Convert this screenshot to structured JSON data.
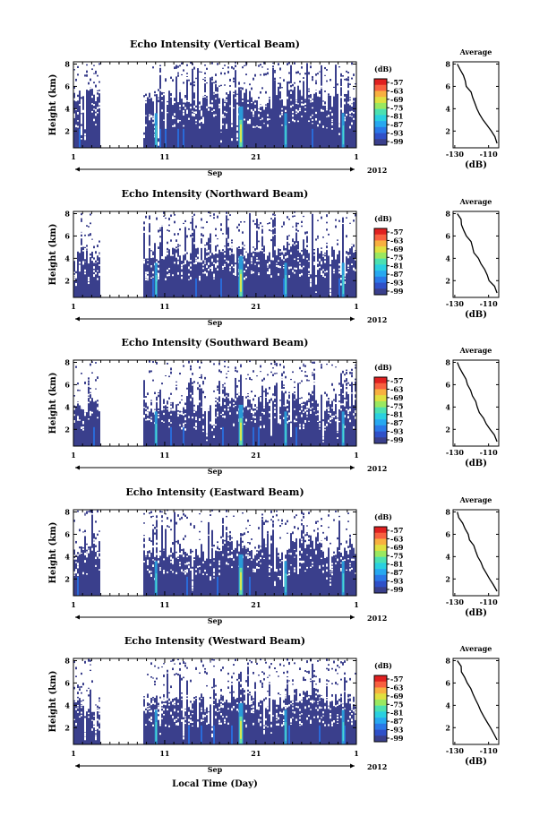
{
  "chart_data": {
    "type": "heatmap",
    "figure_xlabel": "Local Time (Day)",
    "x_ticks": [
      "1",
      "11",
      "21",
      "1"
    ],
    "month_label": "Sep",
    "year_label": "2012",
    "y_ticks": [
      "2",
      "4",
      "6",
      "8"
    ],
    "ylabel": "Height (km)",
    "ylim": [
      0.5,
      8.2
    ],
    "colorbar": {
      "unit": "(dB)",
      "tick_labels": [
        "-57",
        "-63",
        "-69",
        "-75",
        "-81",
        "-87",
        "-93",
        "-99"
      ],
      "colors": [
        "#3a3f8c",
        "#2f50c8",
        "#2a78e8",
        "#27a8f0",
        "#2ad0e0",
        "#4ce0b0",
        "#9ae860",
        "#e0e040",
        "#f8b040",
        "#f86040",
        "#e02020"
      ]
    },
    "data_gap_days": [
      3.8,
      8.6
    ],
    "bright_event_days": [
      9.9,
      19.1,
      24.1,
      30.4
    ],
    "profile": {
      "title": "Average",
      "xlabel": "(dB)",
      "x_ticks": [
        "-130",
        "-110"
      ],
      "xlim": [
        -131,
        -104
      ],
      "y_ticks": [
        "2",
        "4",
        "6",
        "8"
      ],
      "heights": [
        0.9,
        1.5,
        2.0,
        2.5,
        3.0,
        3.5,
        4.0,
        4.5,
        5.0,
        5.5,
        6.0,
        6.5,
        7.0,
        7.5,
        8.0
      ],
      "values": [
        -105,
        -107,
        -109,
        -111,
        -113,
        -115,
        -116.5,
        -118,
        -119.5,
        -121,
        -122.5,
        -124,
        -125.5,
        -127,
        -128.5
      ]
    },
    "panels": [
      {
        "title": "Echo Intensity (Vertical Beam)",
        "top_height_km": [
          5.2,
          5.6,
          5.0,
          4.8,
          5.3,
          4.5,
          5.4,
          4.7
        ]
      },
      {
        "title": "Echo Intensity (Northward Beam)",
        "top_height_km": [
          4.2,
          4.6,
          4.4,
          4.3,
          4.9,
          4.5,
          5.1,
          4.6
        ]
      },
      {
        "title": "Echo Intensity (Southward Beam)",
        "top_height_km": [
          4.0,
          4.4,
          4.1,
          4.0,
          4.6,
          4.2,
          4.8,
          4.3
        ]
      },
      {
        "title": "Echo Intensity (Eastward Beam)",
        "top_height_km": [
          4.4,
          4.6,
          4.5,
          4.2,
          5.0,
          4.4,
          5.2,
          4.5
        ]
      },
      {
        "title": "Echo Intensity (Westward Beam)",
        "top_height_km": [
          4.1,
          4.5,
          4.3,
          4.1,
          4.7,
          4.3,
          4.9,
          4.4
        ]
      }
    ]
  }
}
